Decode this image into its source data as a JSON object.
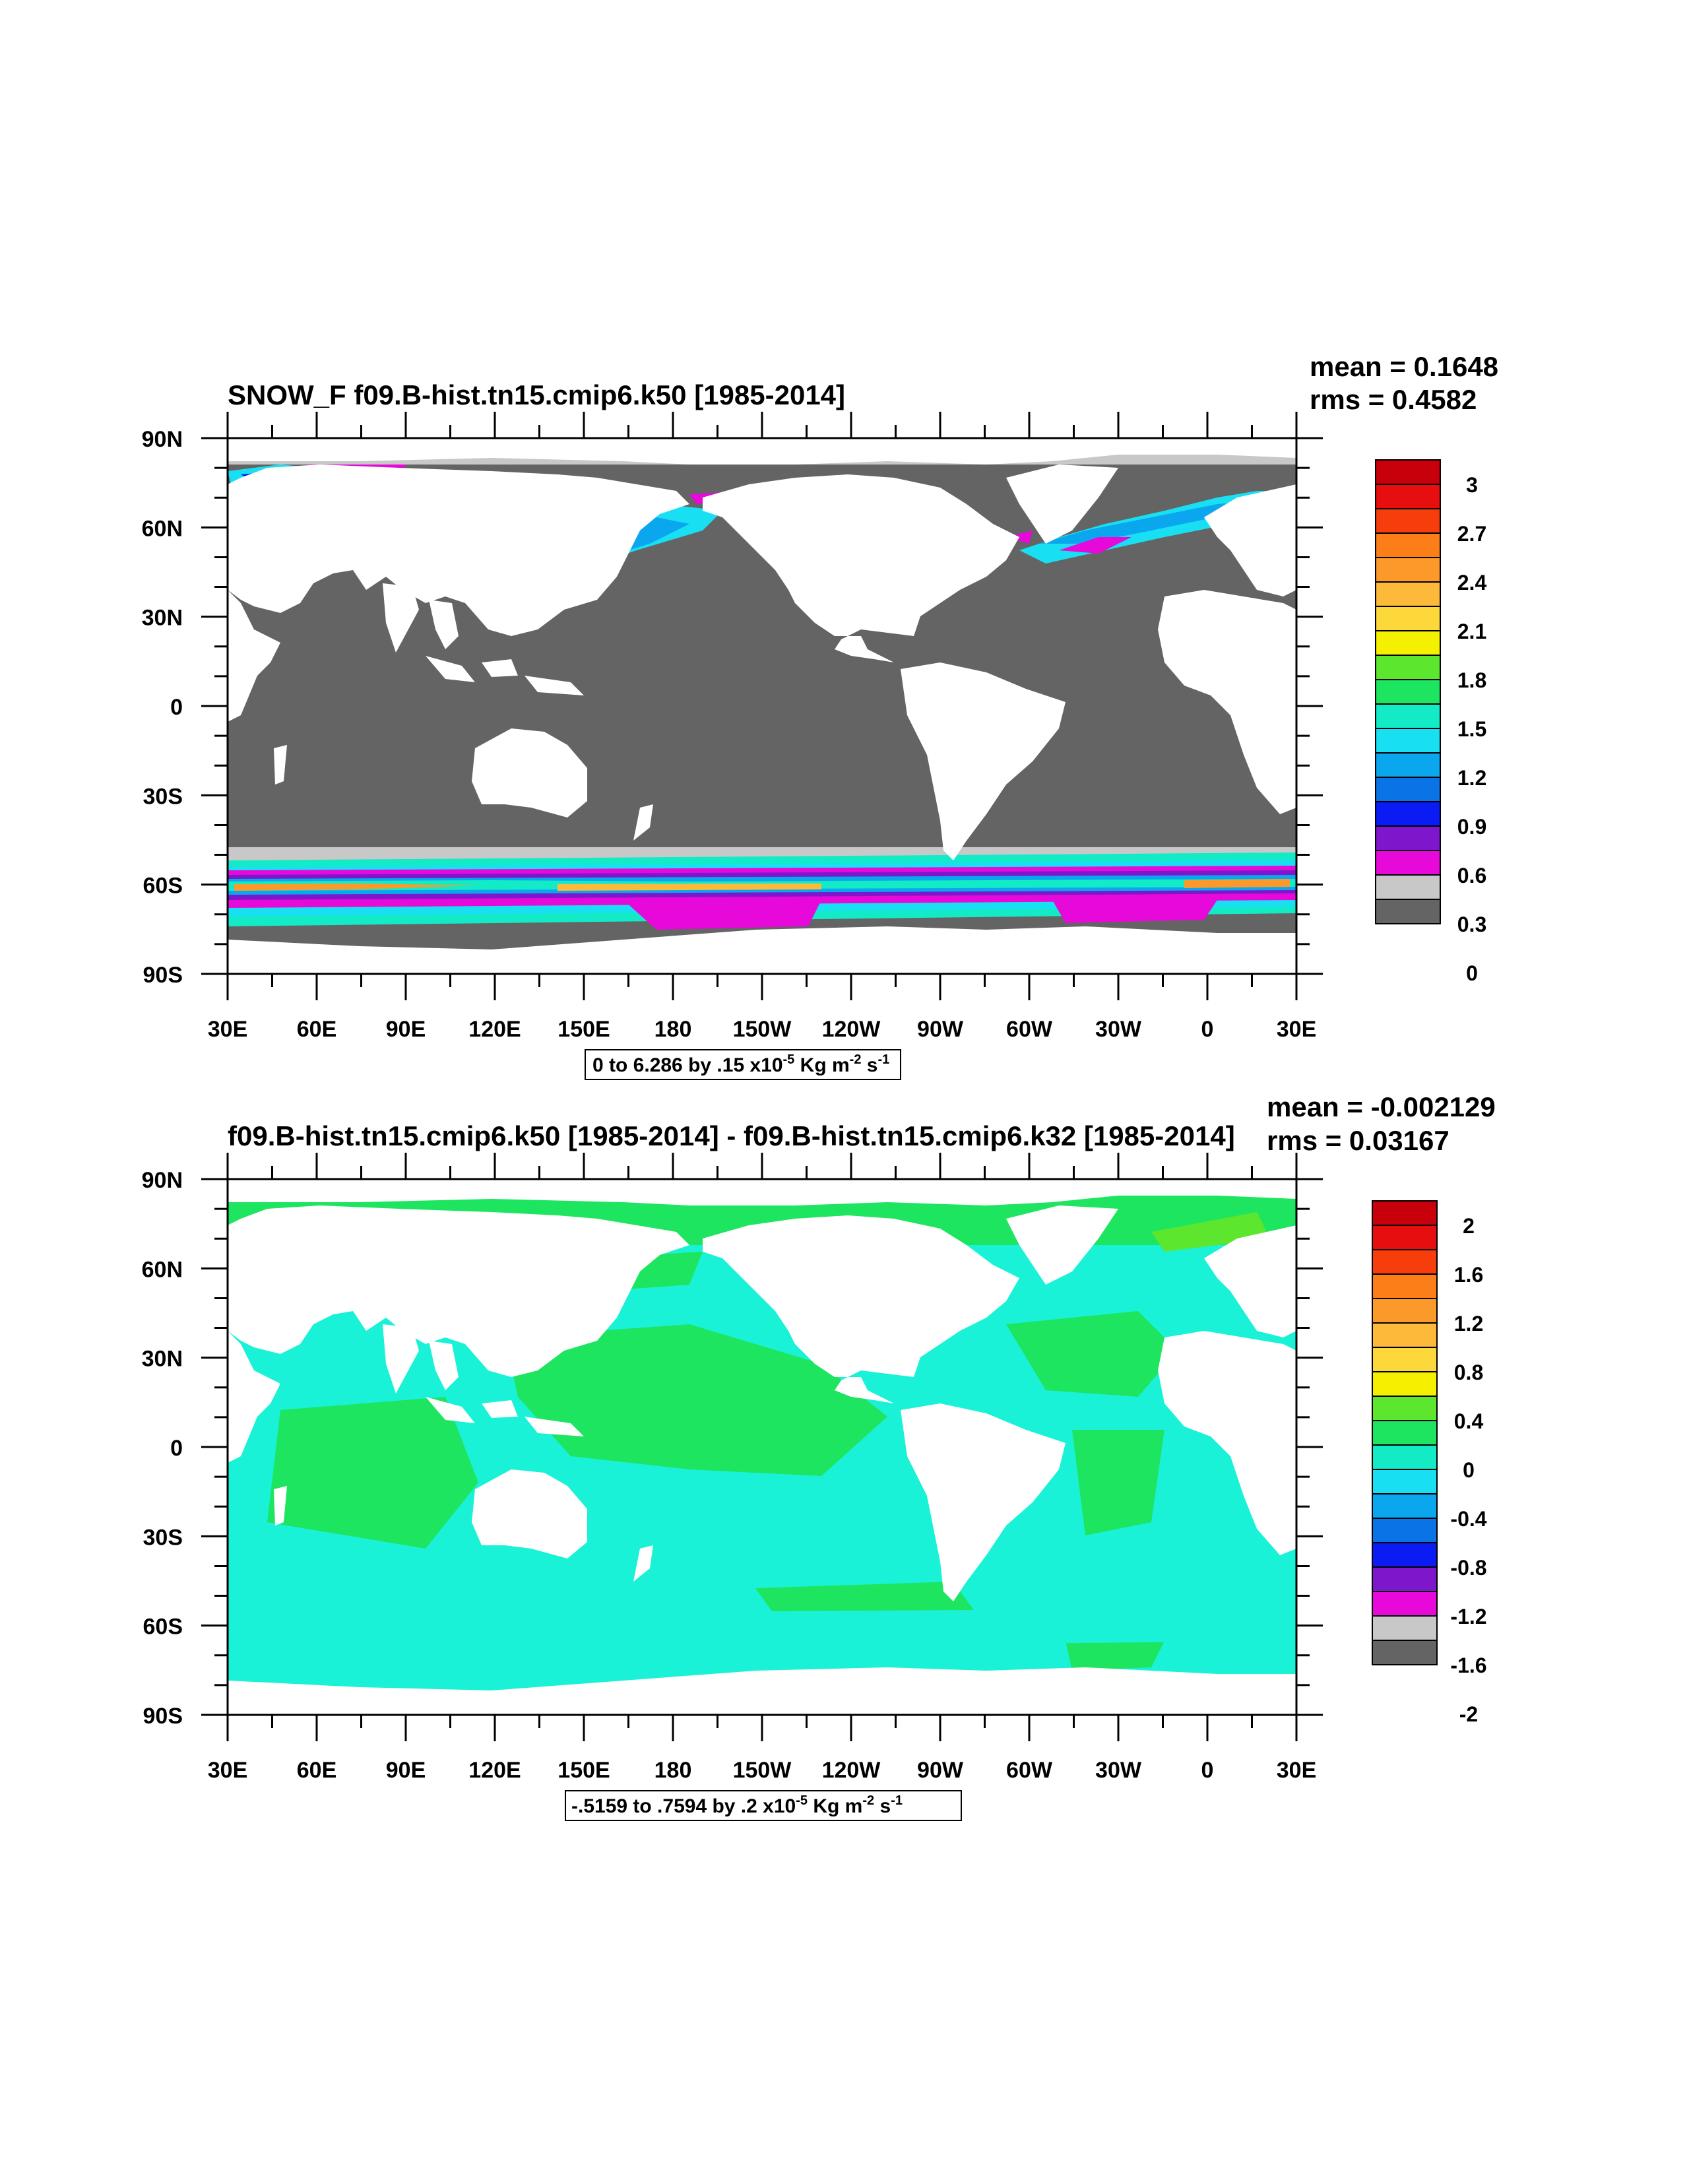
{
  "panels": [
    {
      "title": "SNOW_F f09.B-hist.tn15.cmip6.k50 [1985-2014]",
      "stats": {
        "mean": "mean = 0.1648",
        "rms": "rms = 0.4582"
      },
      "contour_info": "0 to 6.286 by .15 x10",
      "contour_exp": "-5",
      "units_kg": "Kg m",
      "units_m_exp": "-2",
      "units_s": "s",
      "units_s_exp": "-1",
      "colorbar": {
        "labels": [
          "3",
          "2.7",
          "2.4",
          "2.1",
          "1.8",
          "1.5",
          "1.2",
          "0.9",
          "0.6",
          "0.3",
          "0"
        ],
        "colors": [
          "#c8000b",
          "#e60e0e",
          "#f83d0c",
          "#fb7e18",
          "#fb9a2a",
          "#fcb93a",
          "#fdd83a",
          "#f4f000",
          "#5ce62d",
          "#1ee560",
          "#13ebc6",
          "#19dff2",
          "#0aa7ef",
          "#0a74e6",
          "#0a1cf3",
          "#7e17cc",
          "#e609d9",
          "#c8c8c8",
          "#646464"
        ]
      }
    },
    {
      "title": "f09.B-hist.tn15.cmip6.k50 [1985-2014] - f09.B-hist.tn15.cmip6.k32 [1985-2014]",
      "stats": {
        "mean": "mean = -0.002129",
        "rms": "rms = 0.03167"
      },
      "contour_info": "-.5159 to .7594 by .2 x10",
      "contour_exp": "-5",
      "units_kg": "Kg m",
      "units_m_exp": "-2",
      "units_s": "s",
      "units_s_exp": "-1",
      "colorbar": {
        "labels": [
          "2",
          "1.6",
          "1.2",
          "0.8",
          "0.4",
          "0",
          "-0.4",
          "-0.8",
          "-1.2",
          "-1.6",
          "-2"
        ],
        "colors": [
          "#c8000b",
          "#e60e0e",
          "#f83d0c",
          "#fb7e18",
          "#fb9a2a",
          "#fcb93a",
          "#fdd83a",
          "#f4f000",
          "#5ce62d",
          "#1ee560",
          "#13ebc6",
          "#19dff2",
          "#0aa7ef",
          "#0a74e6",
          "#0a1cf3",
          "#7e17cc",
          "#e609d9",
          "#c8c8c8",
          "#646464"
        ]
      }
    }
  ],
  "axes": {
    "lat_labels": [
      "90N",
      "60N",
      "30N",
      "0",
      "30S",
      "60S",
      "90S"
    ],
    "lon_labels": [
      "30E",
      "60E",
      "90E",
      "120E",
      "150E",
      "180",
      "150W",
      "120W",
      "90W",
      "60W",
      "30W",
      "0",
      "30E"
    ]
  },
  "colors": {
    "land": "#ffffff",
    "ocean_zero": "#646464",
    "light_gray": "#c8c8c8",
    "diff_neg": "#19f2d6",
    "diff_zero": "#1ee560"
  }
}
